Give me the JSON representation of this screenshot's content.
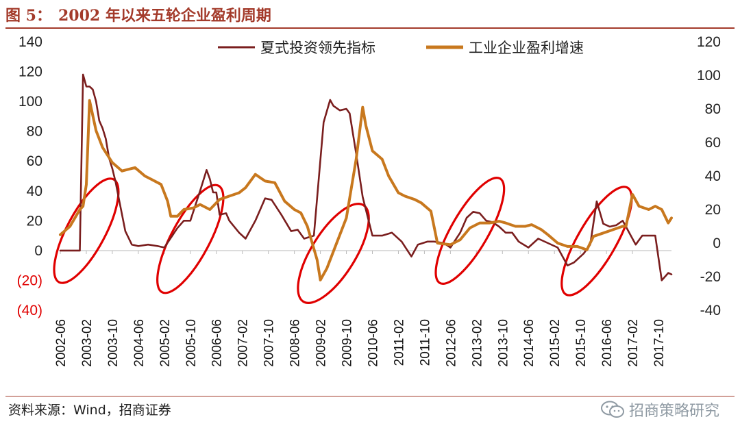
{
  "header": {
    "fig_label": "图 5：",
    "title": "2002 年以来五轮企业盈利周期"
  },
  "footer": {
    "source": "资料来源：Wind，招商证券",
    "watermark": "招商策略研究"
  },
  "colors": {
    "brand": "#A33A2A",
    "series_investment": "#7A1E1E",
    "series_profit": "#C8781E",
    "highlight_ellipse": "#E00000"
  },
  "chart_data": {
    "type": "line",
    "title": "2002 年以来五轮企业盈利周期",
    "x_ticks": [
      "2002-06",
      "2003-02",
      "2003-10",
      "2004-06",
      "2005-02",
      "2005-10",
      "2006-06",
      "2007-02",
      "2007-10",
      "2008-06",
      "2009-02",
      "2009-10",
      "2010-06",
      "2011-02",
      "2011-10",
      "2012-06",
      "2013-02",
      "2013-10",
      "2014-06",
      "2015-02",
      "2015-10",
      "2016-06",
      "2017-02",
      "2017-10"
    ],
    "x_range": [
      "2002-06",
      "2018-02"
    ],
    "left_axis": {
      "ylim": [
        -40,
        140
      ],
      "ticks": [
        140,
        120,
        100,
        80,
        60,
        40,
        20,
        0,
        -20,
        -40
      ],
      "tick_labels": [
        "140",
        "120",
        "100",
        "80",
        "60",
        "40",
        "20",
        "0",
        "(20)",
        "(40)"
      ]
    },
    "right_axis": {
      "ylim": [
        -40,
        120
      ],
      "ticks": [
        120,
        100,
        80,
        60,
        40,
        20,
        0,
        -20,
        -40
      ],
      "tick_labels": [
        "120",
        "100",
        "80",
        "60",
        "40",
        "20",
        "0",
        "-20",
        "-40"
      ]
    },
    "legend_position": "top-center",
    "grid": false,
    "series": [
      {
        "name": "夏式投资领先指标",
        "axis": "left",
        "color": "#7A1E1E",
        "points": [
          [
            "2002-06",
            0
          ],
          [
            "2002-08",
            0
          ],
          [
            "2002-10",
            0
          ],
          [
            "2002-12",
            0
          ],
          [
            "2003-01",
            118
          ],
          [
            "2003-02",
            110
          ],
          [
            "2003-03",
            110
          ],
          [
            "2003-04",
            108
          ],
          [
            "2003-05",
            100
          ],
          [
            "2003-06",
            87
          ],
          [
            "2003-07",
            82
          ],
          [
            "2003-08",
            75
          ],
          [
            "2003-09",
            62
          ],
          [
            "2003-10",
            55
          ],
          [
            "2003-11",
            46
          ],
          [
            "2003-12",
            35
          ],
          [
            "2004-02",
            13
          ],
          [
            "2004-04",
            4
          ],
          [
            "2004-06",
            3
          ],
          [
            "2004-09",
            4
          ],
          [
            "2004-12",
            3
          ],
          [
            "2005-02",
            2
          ],
          [
            "2005-06",
            15
          ],
          [
            "2005-08",
            20
          ],
          [
            "2005-10",
            20
          ],
          [
            "2006-01",
            40
          ],
          [
            "2006-03",
            54
          ],
          [
            "2006-04",
            48
          ],
          [
            "2006-05",
            39
          ],
          [
            "2006-06",
            39
          ],
          [
            "2006-07",
            24
          ],
          [
            "2006-09",
            25
          ],
          [
            "2006-10",
            20
          ],
          [
            "2007-01",
            12
          ],
          [
            "2007-03",
            8
          ],
          [
            "2007-06",
            20
          ],
          [
            "2007-09",
            35
          ],
          [
            "2007-11",
            34
          ],
          [
            "2008-02",
            24
          ],
          [
            "2008-05",
            13
          ],
          [
            "2008-07",
            14
          ],
          [
            "2008-09",
            8
          ],
          [
            "2008-12",
            10
          ],
          [
            "2009-03",
            86
          ],
          [
            "2009-05",
            101
          ],
          [
            "2009-06",
            97
          ],
          [
            "2009-08",
            94
          ],
          [
            "2009-10",
            95
          ],
          [
            "2009-11",
            92
          ],
          [
            "2010-01",
            65
          ],
          [
            "2010-03",
            36
          ],
          [
            "2010-06",
            10
          ],
          [
            "2010-09",
            10
          ],
          [
            "2010-12",
            12
          ],
          [
            "2011-03",
            6
          ],
          [
            "2011-06",
            -4
          ],
          [
            "2011-08",
            4
          ],
          [
            "2011-11",
            6
          ],
          [
            "2012-01",
            6
          ],
          [
            "2012-04",
            5
          ],
          [
            "2012-06",
            2
          ],
          [
            "2012-09",
            12
          ],
          [
            "2012-11",
            22
          ],
          [
            "2013-01",
            26
          ],
          [
            "2013-03",
            25
          ],
          [
            "2013-05",
            20
          ],
          [
            "2013-07",
            19
          ],
          [
            "2013-09",
            16
          ],
          [
            "2013-11",
            12
          ],
          [
            "2014-01",
            12
          ],
          [
            "2014-03",
            6
          ],
          [
            "2014-06",
            2
          ],
          [
            "2014-09",
            8
          ],
          [
            "2014-12",
            5
          ],
          [
            "2015-03",
            2
          ],
          [
            "2015-06",
            -10
          ],
          [
            "2015-08",
            -8
          ],
          [
            "2015-11",
            -2
          ],
          [
            "2016-01",
            4
          ],
          [
            "2016-03",
            33
          ],
          [
            "2016-05",
            18
          ],
          [
            "2016-07",
            16
          ],
          [
            "2016-09",
            17
          ],
          [
            "2016-11",
            20
          ],
          [
            "2017-01",
            12
          ],
          [
            "2017-03",
            4
          ],
          [
            "2017-05",
            10
          ],
          [
            "2017-07",
            10
          ],
          [
            "2017-09",
            10
          ],
          [
            "2017-11",
            -20
          ],
          [
            "2018-01",
            -15
          ],
          [
            "2018-02",
            -16
          ]
        ]
      },
      {
        "name": "工业企业盈利增速",
        "axis": "right",
        "color": "#C8781E",
        "points": [
          [
            "2002-06",
            5
          ],
          [
            "2002-09",
            10
          ],
          [
            "2002-12",
            20
          ],
          [
            "2003-01",
            22
          ],
          [
            "2003-02",
            35
          ],
          [
            "2003-03",
            85
          ],
          [
            "2003-05",
            67
          ],
          [
            "2003-07",
            57
          ],
          [
            "2003-10",
            48
          ],
          [
            "2004-01",
            43
          ],
          [
            "2004-03",
            44
          ],
          [
            "2004-05",
            45
          ],
          [
            "2004-08",
            40
          ],
          [
            "2004-10",
            38
          ],
          [
            "2005-01",
            35
          ],
          [
            "2005-03",
            25
          ],
          [
            "2005-04",
            16
          ],
          [
            "2005-06",
            16
          ],
          [
            "2005-08",
            20
          ],
          [
            "2005-11",
            21
          ],
          [
            "2006-01",
            23
          ],
          [
            "2006-04",
            20
          ],
          [
            "2006-07",
            26
          ],
          [
            "2006-10",
            28
          ],
          [
            "2007-01",
            30
          ],
          [
            "2007-03",
            33
          ],
          [
            "2007-06",
            41
          ],
          [
            "2007-09",
            37
          ],
          [
            "2007-12",
            36
          ],
          [
            "2008-03",
            25
          ],
          [
            "2008-06",
            20
          ],
          [
            "2008-08",
            18
          ],
          [
            "2008-10",
            10
          ],
          [
            "2009-01",
            -10
          ],
          [
            "2009-02",
            -22
          ],
          [
            "2009-04",
            -15
          ],
          [
            "2009-07",
            0
          ],
          [
            "2009-10",
            15
          ],
          [
            "2010-01",
            50
          ],
          [
            "2010-03",
            81
          ],
          [
            "2010-04",
            70
          ],
          [
            "2010-06",
            55
          ],
          [
            "2010-09",
            50
          ],
          [
            "2010-11",
            40
          ],
          [
            "2011-02",
            30
          ],
          [
            "2011-04",
            28
          ],
          [
            "2011-07",
            26
          ],
          [
            "2011-09",
            24
          ],
          [
            "2011-12",
            19
          ],
          [
            "2012-02",
            0
          ],
          [
            "2012-06",
            -1
          ],
          [
            "2012-09",
            2
          ],
          [
            "2012-12",
            9
          ],
          [
            "2013-03",
            12
          ],
          [
            "2013-06",
            12
          ],
          [
            "2013-09",
            13
          ],
          [
            "2013-11",
            12
          ],
          [
            "2014-02",
            10
          ],
          [
            "2014-05",
            10
          ],
          [
            "2014-07",
            11
          ],
          [
            "2014-10",
            8
          ],
          [
            "2014-12",
            5
          ],
          [
            "2015-03",
            0
          ],
          [
            "2015-06",
            -2
          ],
          [
            "2015-09",
            -2
          ],
          [
            "2015-12",
            -4
          ],
          [
            "2016-02",
            4
          ],
          [
            "2016-05",
            6
          ],
          [
            "2016-08",
            8
          ],
          [
            "2016-11",
            10
          ],
          [
            "2016-12",
            10
          ],
          [
            "2017-02",
            29
          ],
          [
            "2017-04",
            22
          ],
          [
            "2017-07",
            20
          ],
          [
            "2017-09",
            22
          ],
          [
            "2017-11",
            20
          ],
          [
            "2018-01",
            12
          ],
          [
            "2018-02",
            15
          ]
        ]
      }
    ],
    "highlights": [
      {
        "center": [
          "2003-02",
          0
        ],
        "label": ""
      },
      {
        "center": [
          "2005-10",
          0
        ],
        "label": ""
      },
      {
        "center": [
          "2009-06",
          0
        ],
        "label": ""
      },
      {
        "center": [
          "2012-12",
          0
        ],
        "label": ""
      },
      {
        "center": [
          "2016-03",
          0
        ],
        "label": ""
      }
    ]
  }
}
